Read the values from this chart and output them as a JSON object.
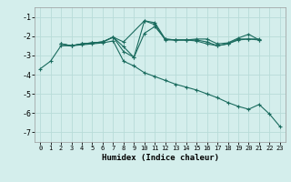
{
  "xlabel": "Humidex (Indice chaleur)",
  "bg_color": "#d4eeec",
  "line_color": "#1a6b5e",
  "grid_color": "#b8dcd8",
  "xlim": [
    -0.5,
    23.5
  ],
  "ylim": [
    -7.5,
    -0.5
  ],
  "yticks": [
    -7,
    -6,
    -5,
    -4,
    -3,
    -2,
    -1
  ],
  "series": [
    {
      "x": [
        0,
        1,
        2,
        3,
        4,
        5,
        6,
        7,
        8,
        9,
        10,
        11,
        12,
        13,
        14,
        15,
        16,
        17,
        18,
        19,
        20,
        21,
        22,
        23
      ],
      "y": [
        -3.7,
        -3.3,
        -2.5,
        -2.5,
        -2.45,
        -2.4,
        -2.35,
        -2.25,
        -3.3,
        -3.55,
        -3.9,
        -4.1,
        -4.3,
        -4.5,
        -4.65,
        -4.8,
        -5.0,
        -5.2,
        -5.45,
        -5.65,
        -5.8,
        -5.55,
        -6.05,
        -6.7
      ]
    },
    {
      "x": [
        2,
        3,
        4,
        5,
        6,
        7,
        8,
        9,
        10,
        11,
        12,
        13,
        14,
        15,
        16,
        17,
        18,
        19,
        20,
        21
      ],
      "y": [
        -2.4,
        -2.5,
        -2.4,
        -2.35,
        -2.3,
        -2.05,
        -2.55,
        -3.1,
        -1.2,
        -1.3,
        -2.15,
        -2.2,
        -2.2,
        -2.15,
        -2.15,
        -2.4,
        -2.35,
        -2.1,
        -1.9,
        -2.2
      ]
    },
    {
      "x": [
        2,
        3,
        4,
        5,
        6,
        7,
        8,
        9,
        10,
        11,
        12,
        13,
        14,
        15,
        16,
        17,
        18,
        19,
        20,
        21
      ],
      "y": [
        -2.4,
        -2.5,
        -2.4,
        -2.35,
        -2.3,
        -2.05,
        -2.8,
        -3.1,
        -1.85,
        -1.5,
        -2.15,
        -2.2,
        -2.2,
        -2.25,
        -2.4,
        -2.5,
        -2.4,
        -2.2,
        -2.15,
        -2.2
      ]
    },
    {
      "x": [
        2,
        3,
        4,
        5,
        6,
        7,
        8,
        10,
        11,
        12,
        13,
        14,
        15,
        16,
        17,
        18,
        19,
        20,
        21
      ],
      "y": [
        -2.4,
        -2.5,
        -2.4,
        -2.35,
        -2.3,
        -2.05,
        -2.3,
        -1.2,
        -1.4,
        -2.2,
        -2.2,
        -2.2,
        -2.2,
        -2.3,
        -2.5,
        -2.4,
        -2.15,
        -2.15,
        -2.15
      ]
    }
  ]
}
